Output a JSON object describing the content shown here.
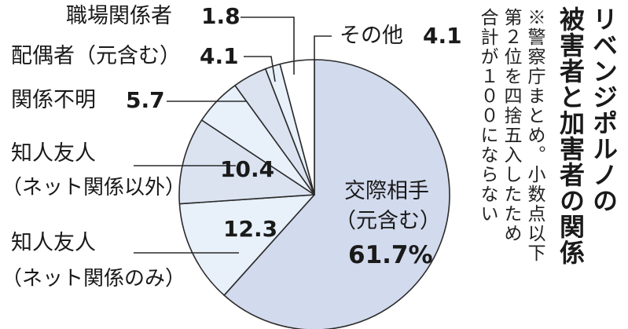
{
  "title": [
    "リベンジポルノの",
    "被害者と加害者の関係"
  ],
  "note": [
    "※警察庁まとめ。小数点以下",
    "第２位を四捨五入したため",
    "合計が１００にならない"
  ],
  "colors": {
    "main_slice": "#d2daed",
    "light_slice": "#e8f0fa",
    "mid_slice": "#dbe3f1",
    "other_slice": "#ffffff",
    "stroke": "#2b2b2b"
  },
  "labels": {
    "main_line1": "交際相手",
    "main_line2": "（元含む）",
    "main_value": "61.7%",
    "online_line1": "知人友人",
    "online_line2": "（ネット関係のみ）",
    "online_value": "12.3",
    "offline_line1": "知人友人",
    "offline_line2": "（ネット関係以外）",
    "offline_value": "10.4",
    "unknown_name": "関係不明",
    "unknown_value": "5.7",
    "spouse_name": "配偶者（元含む）",
    "spouse_value": "4.1",
    "work_name": "職場関係者",
    "work_value": "1.8",
    "other_name": "その他",
    "other_value": "4.1"
  },
  "chart_data": {
    "type": "pie",
    "title": "リベンジポルノの被害者と加害者の関係",
    "note": "※警察庁まとめ。小数点以下第２位を四捨五入したため合計が１００にならない",
    "direction": "clockwise from 12 o'clock",
    "slices": [
      {
        "label": "交際相手（元含む）",
        "value": 61.7
      },
      {
        "label": "知人友人（ネット関係のみ）",
        "value": 12.3
      },
      {
        "label": "知人友人（ネット関係以外）",
        "value": 10.4
      },
      {
        "label": "関係不明",
        "value": 5.7
      },
      {
        "label": "配偶者（元含む）",
        "value": 4.1
      },
      {
        "label": "職場関係者",
        "value": 1.8
      },
      {
        "label": "その他",
        "value": 4.1
      }
    ]
  }
}
